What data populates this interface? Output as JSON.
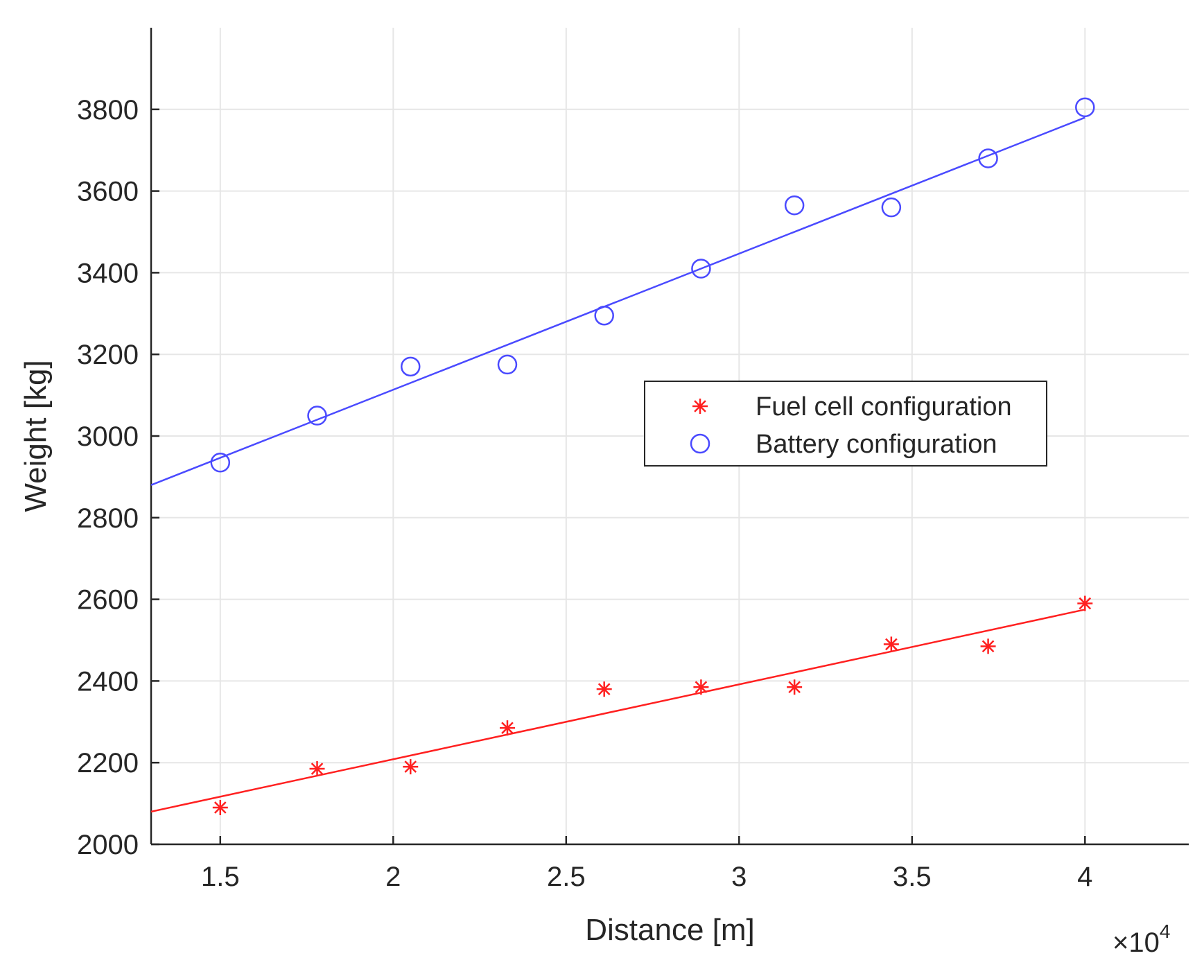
{
  "chart_data": {
    "type": "scatter",
    "title": "",
    "xlabel": "Distance [m]",
    "ylabel": "Weight [kg]",
    "x_multiplier_label": "×10",
    "x_multiplier_exponent": "4",
    "xlim": [
      1.3,
      4.3
    ],
    "ylim": [
      2000,
      4000
    ],
    "xticks": [
      1.5,
      2,
      2.5,
      3,
      3.5,
      4
    ],
    "xtick_labels": [
      "1.5",
      "2",
      "2.5",
      "3",
      "3.5",
      "4"
    ],
    "yticks": [
      2000,
      2200,
      2400,
      2600,
      2800,
      3000,
      3200,
      3400,
      3600,
      3800
    ],
    "ytick_labels": [
      "2000",
      "2200",
      "2400",
      "2600",
      "2800",
      "3000",
      "3200",
      "3400",
      "3600",
      "3800"
    ],
    "grid": true,
    "legend_position": "right-middle",
    "series": [
      {
        "name": "Fuel cell configuration",
        "marker": "asterisk",
        "color": "#ff2020",
        "x": [
          1.5,
          1.78,
          2.05,
          2.33,
          2.61,
          2.89,
          3.16,
          3.44,
          3.72,
          4.0
        ],
        "y": [
          2090,
          2185,
          2190,
          2285,
          2380,
          2385,
          2385,
          2490,
          2485,
          2590
        ],
        "fit_line": {
          "x": [
            1.3,
            4.0
          ],
          "y": [
            2080,
            2575
          ]
        }
      },
      {
        "name": "Battery configuration",
        "marker": "circle",
        "color": "#4a4aff",
        "x": [
          1.5,
          1.78,
          2.05,
          2.33,
          2.61,
          2.89,
          3.16,
          3.44,
          3.72,
          4.0
        ],
        "y": [
          2935,
          3050,
          3170,
          3175,
          3295,
          3410,
          3565,
          3560,
          3680,
          3805
        ],
        "fit_line": {
          "x": [
            1.3,
            4.0
          ],
          "y": [
            2880,
            3780
          ]
        }
      }
    ]
  }
}
